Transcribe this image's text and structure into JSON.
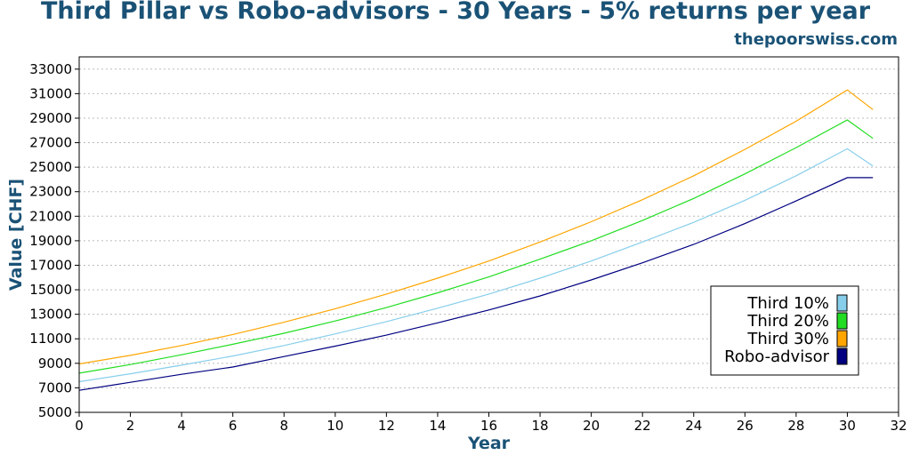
{
  "title": "Third Pillar vs Robo-advisors - 30 Years - 5% returns per year",
  "source": "thepoorswiss.com",
  "colors": {
    "title": "#1a5276",
    "third10": "#87ceeb",
    "third20": "#22dd22",
    "third30": "#ffa500",
    "robo": "#000080",
    "grid": "#bbbbbb"
  },
  "chart_data": {
    "type": "line",
    "xlabel": "Year",
    "ylabel": "Value [CHF]",
    "xlim": [
      0,
      32
    ],
    "ylim": [
      5000,
      34000
    ],
    "xticks": [
      0,
      2,
      4,
      6,
      8,
      10,
      12,
      14,
      16,
      18,
      20,
      22,
      24,
      26,
      28,
      30,
      32
    ],
    "yticks": [
      5000,
      7000,
      9000,
      11000,
      13000,
      15000,
      17000,
      19000,
      21000,
      23000,
      25000,
      27000,
      29000,
      31000,
      33000
    ],
    "grid": "horizontal-dotted",
    "legend_position": "lower-right",
    "x": [
      0,
      2,
      4,
      6,
      8,
      10,
      12,
      14,
      16,
      18,
      20,
      22,
      24,
      26,
      28,
      30,
      31
    ],
    "series": [
      {
        "name": "Third 10%",
        "color": "#87ceeb",
        "values": [
          7500,
          8150,
          8850,
          9600,
          10450,
          11400,
          12400,
          13500,
          14650,
          15950,
          17350,
          18900,
          20500,
          22300,
          24300,
          26500,
          25100
        ]
      },
      {
        "name": "Third 20%",
        "color": "#22dd22",
        "values": [
          8200,
          8900,
          9700,
          10550,
          11450,
          12450,
          13550,
          14750,
          16050,
          17500,
          19000,
          20650,
          22450,
          24450,
          26600,
          28850,
          27350
        ]
      },
      {
        "name": "Third 30%",
        "color": "#ffa500",
        "values": [
          8950,
          9650,
          10450,
          11350,
          12350,
          13450,
          14650,
          15950,
          17350,
          18900,
          20550,
          22350,
          24300,
          26450,
          28750,
          31300,
          29700
        ]
      },
      {
        "name": "Robo-advisor",
        "color": "#000080",
        "values": [
          6800,
          7450,
          8100,
          8700,
          9550,
          10400,
          11300,
          12300,
          13350,
          14500,
          15800,
          17200,
          18700,
          20400,
          22250,
          24150,
          24150
        ]
      }
    ]
  }
}
